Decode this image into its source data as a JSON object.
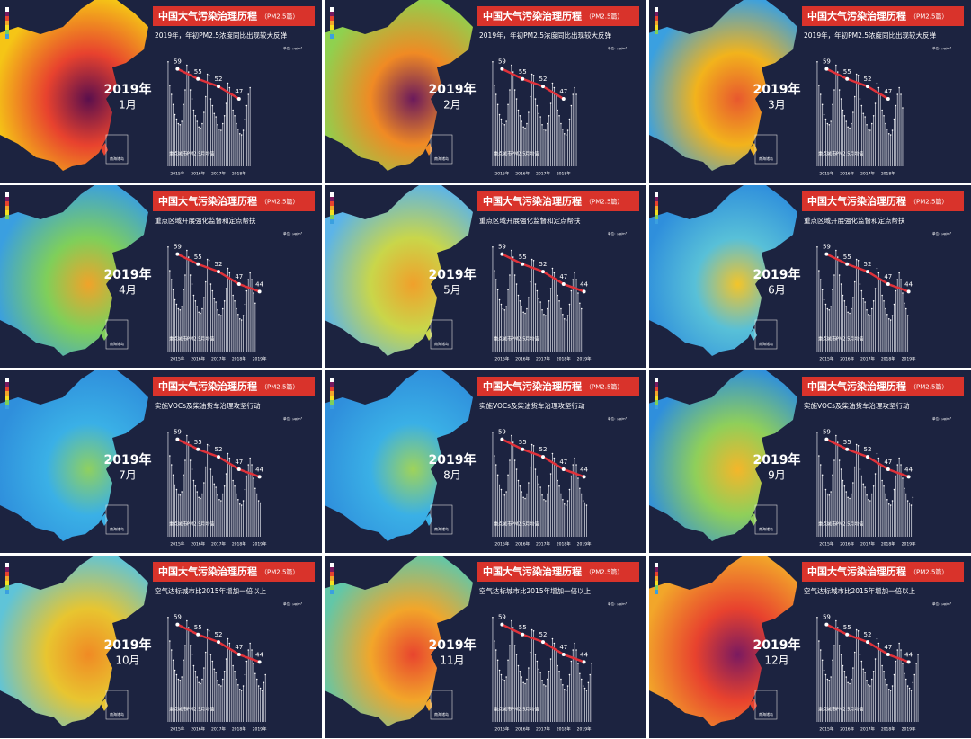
{
  "title": "中国大气污染治理历程",
  "title_tag": "（PM2.5篇）",
  "year": "2019年",
  "legend": "重点城市PM2.5月均值",
  "unit": "单位：μg/m³",
  "inset": "南海诸岛",
  "years": [
    "2015年",
    "2016年",
    "2017年",
    "2018年",
    "2019年"
  ],
  "bar_color": "#c8cad4",
  "line_color": "#e0323a",
  "ylim": [
    0,
    100
  ],
  "y2lim": [
    20,
    65
  ],
  "monthly": [
    93,
    72,
    64,
    55,
    46,
    42,
    38,
    37,
    40,
    55,
    68,
    90,
    84,
    68,
    60,
    50,
    45,
    40,
    35,
    34,
    38,
    48,
    62,
    82,
    81,
    60,
    54,
    47,
    44,
    37,
    33,
    32,
    38,
    45,
    56,
    74,
    70,
    64,
    50,
    45,
    38,
    33,
    29,
    28,
    32,
    42,
    54,
    64,
    70,
    64,
    52,
    43,
    38,
    32,
    30,
    28,
    35,
    42,
    52,
    60
  ],
  "panels": [
    {
      "month": "1月",
      "subtitle": "2019年，年初PM2.5浓度同比出现较大反弹",
      "line": [
        59,
        55,
        52,
        47
      ],
      "palette": [
        "#f5c516",
        "#e8422e",
        "#5a0f4d"
      ]
    },
    {
      "month": "2月",
      "subtitle": "2019年，年初PM2.5浓度同比出现较大反弹",
      "line": [
        59,
        55,
        52,
        47
      ],
      "palette": [
        "#8fd14f",
        "#f08a24",
        "#6b1a5c"
      ]
    },
    {
      "month": "3月",
      "subtitle": "2019年，年初PM2.5浓度同比出现较大反弹",
      "line": [
        59,
        55,
        52,
        47
      ],
      "palette": [
        "#3aa0e0",
        "#f2b31c",
        "#e8582e"
      ]
    },
    {
      "month": "4月",
      "subtitle": "重点区域开展强化监督和定点帮扶",
      "line": [
        59,
        55,
        52,
        47,
        44
      ],
      "palette": [
        "#3a9fe0",
        "#7fcf5a",
        "#f0a32a"
      ]
    },
    {
      "month": "5月",
      "subtitle": "重点区域开展强化监督和定点帮扶",
      "line": [
        59,
        55,
        52,
        47,
        44
      ],
      "palette": [
        "#5cb4e8",
        "#c9d64a",
        "#f0a02b"
      ]
    },
    {
      "month": "6月",
      "subtitle": "重点区域开展强化监督和定点帮扶",
      "line": [
        59,
        55,
        52,
        47,
        44
      ],
      "palette": [
        "#2f8fdc",
        "#58c0d8",
        "#f3c42a"
      ]
    },
    {
      "month": "7月",
      "subtitle": "实施VOCs及柴油货车治理攻坚行动",
      "line": [
        59,
        55,
        52,
        47,
        44
      ],
      "palette": [
        "#2f8fdc",
        "#3ab0e6",
        "#8fd060"
      ]
    },
    {
      "month": "8月",
      "subtitle": "实施VOCs及柴油货车治理攻坚行动",
      "line": [
        59,
        55,
        52,
        47,
        44
      ],
      "palette": [
        "#2f8fdc",
        "#3ab0e6",
        "#9fd35a"
      ]
    },
    {
      "month": "9月",
      "subtitle": "实施VOCs及柴油货车治理攻坚行动",
      "line": [
        59,
        55,
        52,
        47,
        44
      ],
      "palette": [
        "#2f8fdc",
        "#8fcf5a",
        "#f4b62a"
      ]
    },
    {
      "month": "10月",
      "subtitle": "空气达标城市比2015年增加一倍以上",
      "line": [
        59,
        55,
        52,
        47,
        44
      ],
      "palette": [
        "#5fc4d8",
        "#e8c530",
        "#f08a24"
      ]
    },
    {
      "month": "11月",
      "subtitle": "空气达标城市比2015年增加一倍以上",
      "line": [
        59,
        55,
        52,
        47,
        44
      ],
      "palette": [
        "#62c7a8",
        "#f2a62a",
        "#e8452e"
      ]
    },
    {
      "month": "12月",
      "subtitle": "空气达标城市比2015年增加一倍以上",
      "line": [
        59,
        55,
        52,
        47,
        44
      ],
      "palette": [
        "#f2a62a",
        "#e8422e",
        "#7a1a60"
      ]
    }
  ]
}
